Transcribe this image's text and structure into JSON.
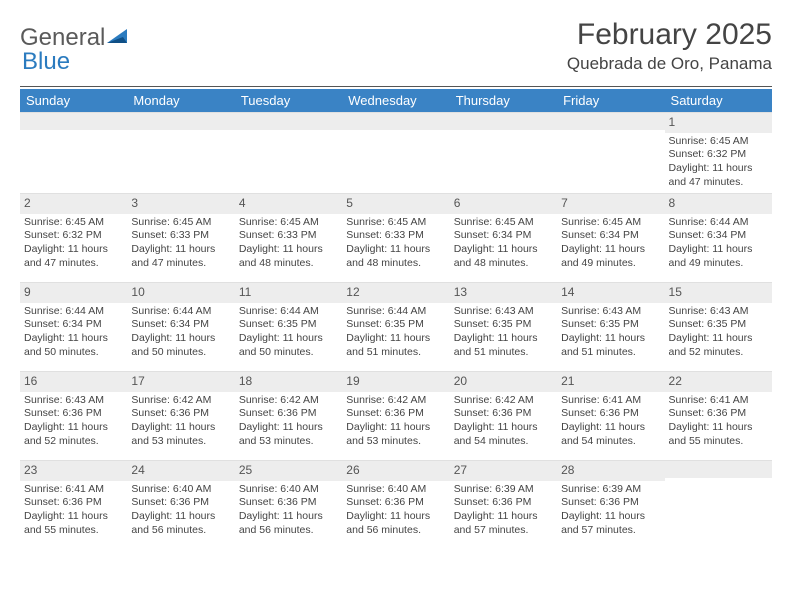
{
  "logo": {
    "text1": "General",
    "text2": "Blue"
  },
  "header": {
    "month_title": "February 2025",
    "location": "Quebrada de Oro, Panama"
  },
  "colors": {
    "header_bg": "#3a83c5",
    "header_fg": "#ffffff",
    "daynum_bg": "#ededed",
    "text": "#444444",
    "rule": "#555555"
  },
  "fonts": {
    "title_size_pt": 22,
    "location_size_pt": 13,
    "dow_size_pt": 10,
    "cell_size_pt": 8
  },
  "dow": [
    "Sunday",
    "Monday",
    "Tuesday",
    "Wednesday",
    "Thursday",
    "Friday",
    "Saturday"
  ],
  "weeks": [
    [
      null,
      null,
      null,
      null,
      null,
      null,
      {
        "n": "1",
        "sunrise": "Sunrise: 6:45 AM",
        "sunset": "Sunset: 6:32 PM",
        "day1": "Daylight: 11 hours",
        "day2": "and 47 minutes."
      }
    ],
    [
      {
        "n": "2",
        "sunrise": "Sunrise: 6:45 AM",
        "sunset": "Sunset: 6:32 PM",
        "day1": "Daylight: 11 hours",
        "day2": "and 47 minutes."
      },
      {
        "n": "3",
        "sunrise": "Sunrise: 6:45 AM",
        "sunset": "Sunset: 6:33 PM",
        "day1": "Daylight: 11 hours",
        "day2": "and 47 minutes."
      },
      {
        "n": "4",
        "sunrise": "Sunrise: 6:45 AM",
        "sunset": "Sunset: 6:33 PM",
        "day1": "Daylight: 11 hours",
        "day2": "and 48 minutes."
      },
      {
        "n": "5",
        "sunrise": "Sunrise: 6:45 AM",
        "sunset": "Sunset: 6:33 PM",
        "day1": "Daylight: 11 hours",
        "day2": "and 48 minutes."
      },
      {
        "n": "6",
        "sunrise": "Sunrise: 6:45 AM",
        "sunset": "Sunset: 6:34 PM",
        "day1": "Daylight: 11 hours",
        "day2": "and 48 minutes."
      },
      {
        "n": "7",
        "sunrise": "Sunrise: 6:45 AM",
        "sunset": "Sunset: 6:34 PM",
        "day1": "Daylight: 11 hours",
        "day2": "and 49 minutes."
      },
      {
        "n": "8",
        "sunrise": "Sunrise: 6:44 AM",
        "sunset": "Sunset: 6:34 PM",
        "day1": "Daylight: 11 hours",
        "day2": "and 49 minutes."
      }
    ],
    [
      {
        "n": "9",
        "sunrise": "Sunrise: 6:44 AM",
        "sunset": "Sunset: 6:34 PM",
        "day1": "Daylight: 11 hours",
        "day2": "and 50 minutes."
      },
      {
        "n": "10",
        "sunrise": "Sunrise: 6:44 AM",
        "sunset": "Sunset: 6:34 PM",
        "day1": "Daylight: 11 hours",
        "day2": "and 50 minutes."
      },
      {
        "n": "11",
        "sunrise": "Sunrise: 6:44 AM",
        "sunset": "Sunset: 6:35 PM",
        "day1": "Daylight: 11 hours",
        "day2": "and 50 minutes."
      },
      {
        "n": "12",
        "sunrise": "Sunrise: 6:44 AM",
        "sunset": "Sunset: 6:35 PM",
        "day1": "Daylight: 11 hours",
        "day2": "and 51 minutes."
      },
      {
        "n": "13",
        "sunrise": "Sunrise: 6:43 AM",
        "sunset": "Sunset: 6:35 PM",
        "day1": "Daylight: 11 hours",
        "day2": "and 51 minutes."
      },
      {
        "n": "14",
        "sunrise": "Sunrise: 6:43 AM",
        "sunset": "Sunset: 6:35 PM",
        "day1": "Daylight: 11 hours",
        "day2": "and 51 minutes."
      },
      {
        "n": "15",
        "sunrise": "Sunrise: 6:43 AM",
        "sunset": "Sunset: 6:35 PM",
        "day1": "Daylight: 11 hours",
        "day2": "and 52 minutes."
      }
    ],
    [
      {
        "n": "16",
        "sunrise": "Sunrise: 6:43 AM",
        "sunset": "Sunset: 6:36 PM",
        "day1": "Daylight: 11 hours",
        "day2": "and 52 minutes."
      },
      {
        "n": "17",
        "sunrise": "Sunrise: 6:42 AM",
        "sunset": "Sunset: 6:36 PM",
        "day1": "Daylight: 11 hours",
        "day2": "and 53 minutes."
      },
      {
        "n": "18",
        "sunrise": "Sunrise: 6:42 AM",
        "sunset": "Sunset: 6:36 PM",
        "day1": "Daylight: 11 hours",
        "day2": "and 53 minutes."
      },
      {
        "n": "19",
        "sunrise": "Sunrise: 6:42 AM",
        "sunset": "Sunset: 6:36 PM",
        "day1": "Daylight: 11 hours",
        "day2": "and 53 minutes."
      },
      {
        "n": "20",
        "sunrise": "Sunrise: 6:42 AM",
        "sunset": "Sunset: 6:36 PM",
        "day1": "Daylight: 11 hours",
        "day2": "and 54 minutes."
      },
      {
        "n": "21",
        "sunrise": "Sunrise: 6:41 AM",
        "sunset": "Sunset: 6:36 PM",
        "day1": "Daylight: 11 hours",
        "day2": "and 54 minutes."
      },
      {
        "n": "22",
        "sunrise": "Sunrise: 6:41 AM",
        "sunset": "Sunset: 6:36 PM",
        "day1": "Daylight: 11 hours",
        "day2": "and 55 minutes."
      }
    ],
    [
      {
        "n": "23",
        "sunrise": "Sunrise: 6:41 AM",
        "sunset": "Sunset: 6:36 PM",
        "day1": "Daylight: 11 hours",
        "day2": "and 55 minutes."
      },
      {
        "n": "24",
        "sunrise": "Sunrise: 6:40 AM",
        "sunset": "Sunset: 6:36 PM",
        "day1": "Daylight: 11 hours",
        "day2": "and 56 minutes."
      },
      {
        "n": "25",
        "sunrise": "Sunrise: 6:40 AM",
        "sunset": "Sunset: 6:36 PM",
        "day1": "Daylight: 11 hours",
        "day2": "and 56 minutes."
      },
      {
        "n": "26",
        "sunrise": "Sunrise: 6:40 AM",
        "sunset": "Sunset: 6:36 PM",
        "day1": "Daylight: 11 hours",
        "day2": "and 56 minutes."
      },
      {
        "n": "27",
        "sunrise": "Sunrise: 6:39 AM",
        "sunset": "Sunset: 6:36 PM",
        "day1": "Daylight: 11 hours",
        "day2": "and 57 minutes."
      },
      {
        "n": "28",
        "sunrise": "Sunrise: 6:39 AM",
        "sunset": "Sunset: 6:36 PM",
        "day1": "Daylight: 11 hours",
        "day2": "and 57 minutes."
      },
      null
    ]
  ]
}
